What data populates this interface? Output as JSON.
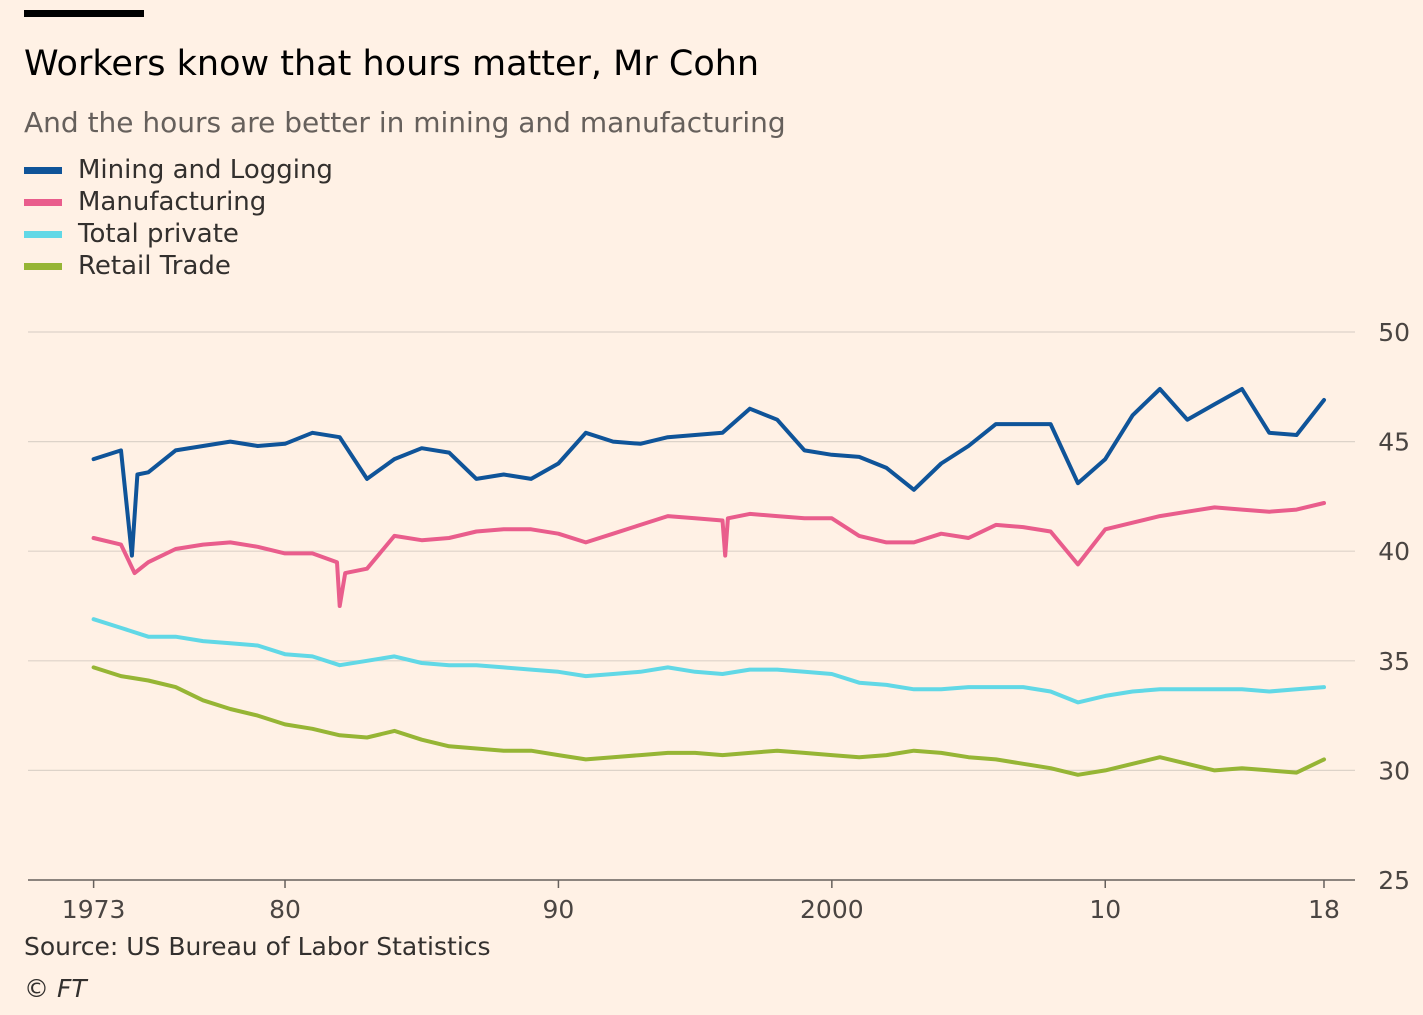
{
  "header": {
    "title": "Workers know that hours matter, Mr Cohn",
    "subtitle": "And the hours are better in mining and manufacturing"
  },
  "footer": {
    "source": "Source: US Bureau of Labor Statistics",
    "credit": "© FT"
  },
  "chart_data": {
    "type": "line",
    "title": "Workers know that hours matter, Mr Cohn",
    "subtitle": "And the hours are better in mining and manufacturing",
    "xlabel": "",
    "ylabel": "",
    "xlim": [
      1970.6,
      2019.5
    ],
    "ylim": [
      25,
      50
    ],
    "y_ticks": [
      25,
      30,
      35,
      40,
      45,
      50
    ],
    "x_ticks": [
      {
        "value": 1973,
        "label": "1973"
      },
      {
        "value": 1980,
        "label": "80"
      },
      {
        "value": 1990,
        "label": "90"
      },
      {
        "value": 2000,
        "label": "2000"
      },
      {
        "value": 2010,
        "label": "10"
      },
      {
        "value": 2018,
        "label": "18"
      }
    ],
    "grid": true,
    "legend_position": "top-left",
    "series": [
      {
        "name": "Mining and Logging",
        "color": "#0f5499",
        "x": [
          1973.0,
          1974.0,
          1974.4,
          1974.6,
          1975.0,
          1976.0,
          1977.0,
          1978.0,
          1979.0,
          1980.0,
          1981.0,
          1982.0,
          1983.0,
          1984.0,
          1985.0,
          1986.0,
          1987.0,
          1988.0,
          1989.0,
          1990.0,
          1991.0,
          1992.0,
          1993.0,
          1994.0,
          1995.0,
          1996.0,
          1997.0,
          1998.0,
          1999.0,
          2000.0,
          2001.0,
          2002.0,
          2003.0,
          2004.0,
          2005.0,
          2006.0,
          2007.0,
          2008.0,
          2009.0,
          2010.0,
          2011.0,
          2012.0,
          2013.0,
          2014.0,
          2015.0,
          2016.0,
          2017.0,
          2018.0
        ],
        "values": [
          44.2,
          44.6,
          39.8,
          43.5,
          43.6,
          44.6,
          44.8,
          45.0,
          44.8,
          44.9,
          45.4,
          45.2,
          43.3,
          44.2,
          44.7,
          44.5,
          43.3,
          43.5,
          43.3,
          44.0,
          45.4,
          45.0,
          44.9,
          45.2,
          45.3,
          45.4,
          46.5,
          46.0,
          44.6,
          44.4,
          44.3,
          43.8,
          42.8,
          44.0,
          44.8,
          45.8,
          45.8,
          45.8,
          43.1,
          44.2,
          46.2,
          47.4,
          46.0,
          46.7,
          47.4,
          45.4,
          45.3,
          46.9
        ]
      },
      {
        "name": "Manufacturing",
        "color": "#e95d8c",
        "x": [
          1973.0,
          1974.0,
          1974.5,
          1975.0,
          1976.0,
          1977.0,
          1978.0,
          1979.0,
          1980.0,
          1981.0,
          1981.9,
          1982.0,
          1982.2,
          1983.0,
          1984.0,
          1985.0,
          1986.0,
          1987.0,
          1988.0,
          1989.0,
          1990.0,
          1991.0,
          1992.0,
          1993.0,
          1994.0,
          1995.0,
          1996.0,
          1996.1,
          1996.2,
          1997.0,
          1998.0,
          1999.0,
          2000.0,
          2001.0,
          2002.0,
          2003.0,
          2004.0,
          2005.0,
          2006.0,
          2007.0,
          2008.0,
          2009.0,
          2010.0,
          2011.0,
          2012.0,
          2013.0,
          2014.0,
          2015.0,
          2016.0,
          2017.0,
          2018.0
        ],
        "values": [
          40.6,
          40.3,
          39.0,
          39.5,
          40.1,
          40.3,
          40.4,
          40.2,
          39.9,
          39.9,
          39.5,
          37.5,
          39.0,
          39.2,
          40.7,
          40.5,
          40.6,
          40.9,
          41.0,
          41.0,
          40.8,
          40.4,
          40.8,
          41.2,
          41.6,
          41.5,
          41.4,
          39.8,
          41.5,
          41.7,
          41.6,
          41.5,
          41.5,
          40.7,
          40.4,
          40.4,
          40.8,
          40.6,
          41.2,
          41.1,
          40.9,
          39.4,
          41.0,
          41.3,
          41.6,
          41.8,
          42.0,
          41.9,
          41.8,
          41.9,
          42.2
        ]
      },
      {
        "name": "Total private",
        "color": "#61d8e6",
        "x": [
          1973.0,
          1974.0,
          1975.0,
          1976.0,
          1977.0,
          1978.0,
          1979.0,
          1980.0,
          1981.0,
          1982.0,
          1983.0,
          1984.0,
          1985.0,
          1986.0,
          1987.0,
          1988.0,
          1989.0,
          1990.0,
          1991.0,
          1992.0,
          1993.0,
          1994.0,
          1995.0,
          1996.0,
          1997.0,
          1998.0,
          1999.0,
          2000.0,
          2001.0,
          2002.0,
          2003.0,
          2004.0,
          2005.0,
          2006.0,
          2007.0,
          2008.0,
          2009.0,
          2010.0,
          2011.0,
          2012.0,
          2013.0,
          2014.0,
          2015.0,
          2016.0,
          2017.0,
          2018.0
        ],
        "values": [
          36.9,
          36.5,
          36.1,
          36.1,
          35.9,
          35.8,
          35.7,
          35.3,
          35.2,
          34.8,
          35.0,
          35.2,
          34.9,
          34.8,
          34.8,
          34.7,
          34.6,
          34.5,
          34.3,
          34.4,
          34.5,
          34.7,
          34.5,
          34.4,
          34.6,
          34.6,
          34.5,
          34.4,
          34.0,
          33.9,
          33.7,
          33.7,
          33.8,
          33.8,
          33.8,
          33.6,
          33.1,
          33.4,
          33.6,
          33.7,
          33.7,
          33.7,
          33.7,
          33.6,
          33.7,
          33.8
        ]
      },
      {
        "name": "Retail Trade",
        "color": "#96b535",
        "x": [
          1973.0,
          1974.0,
          1975.0,
          1976.0,
          1977.0,
          1978.0,
          1979.0,
          1980.0,
          1981.0,
          1982.0,
          1983.0,
          1984.0,
          1985.0,
          1986.0,
          1987.0,
          1988.0,
          1989.0,
          1990.0,
          1991.0,
          1992.0,
          1993.0,
          1994.0,
          1995.0,
          1996.0,
          1997.0,
          1998.0,
          1999.0,
          2000.0,
          2001.0,
          2002.0,
          2003.0,
          2004.0,
          2005.0,
          2006.0,
          2007.0,
          2008.0,
          2009.0,
          2010.0,
          2011.0,
          2012.0,
          2013.0,
          2014.0,
          2015.0,
          2016.0,
          2017.0,
          2018.0
        ],
        "values": [
          34.7,
          34.3,
          34.1,
          33.8,
          33.2,
          32.8,
          32.5,
          32.1,
          31.9,
          31.6,
          31.5,
          31.8,
          31.4,
          31.1,
          31.0,
          30.9,
          30.9,
          30.7,
          30.5,
          30.6,
          30.7,
          30.8,
          30.8,
          30.7,
          30.8,
          30.9,
          30.8,
          30.7,
          30.6,
          30.7,
          30.9,
          30.8,
          30.6,
          30.5,
          30.3,
          30.1,
          29.8,
          30.0,
          30.3,
          30.6,
          30.3,
          30.0,
          30.1,
          30.0,
          29.9,
          30.5
        ]
      }
    ]
  }
}
